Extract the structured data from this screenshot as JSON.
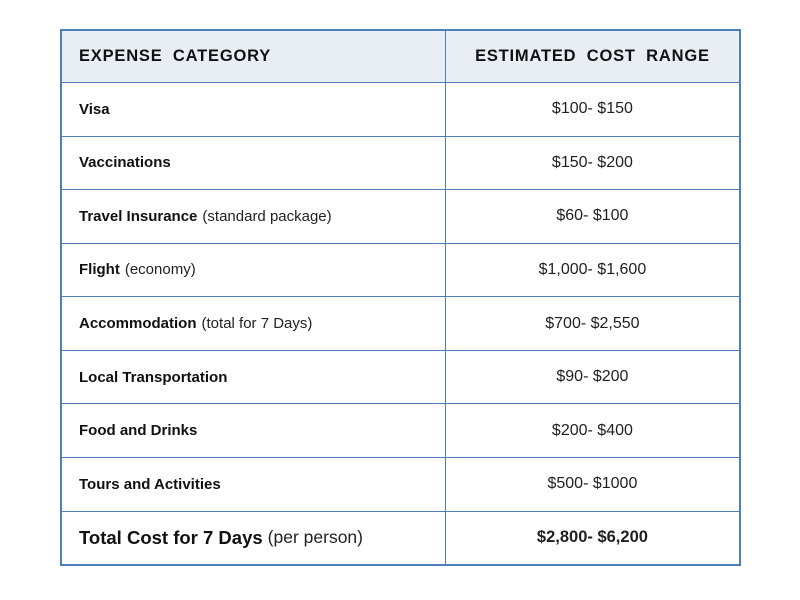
{
  "colors": {
    "border": "#4e7fba",
    "header_bg": "#e9eef5",
    "body_bg": "#ffffff",
    "text": "#1a1a1a"
  },
  "table": {
    "headers": {
      "category": "EXPENSE CATEGORY",
      "cost": "ESTIMATED COST RANGE"
    },
    "rows": [
      {
        "category": "Visa",
        "note": "",
        "cost": "$100- $150"
      },
      {
        "category": "Vaccinations",
        "note": "",
        "cost": "$150- $200"
      },
      {
        "category": "Travel Insurance",
        "note": "(standard package)",
        "cost": "$60- $100"
      },
      {
        "category": "Flight",
        "note": "(economy)",
        "cost": "$1,000- $1,600"
      },
      {
        "category": "Accommodation",
        "note": "(total for 7 Days)",
        "cost": "$700- $2,550"
      },
      {
        "category": "Local Transportation",
        "note": "",
        "cost": "$90- $200"
      },
      {
        "category": "Food and Drinks",
        "note": "",
        "cost": "$200- $400"
      },
      {
        "category": "Tours and Activities",
        "note": "",
        "cost": "$500- $1000"
      },
      {
        "category": "Total Cost for 7 Days",
        "note": "(per person)",
        "cost": "$2,800- $6,200"
      }
    ]
  }
}
